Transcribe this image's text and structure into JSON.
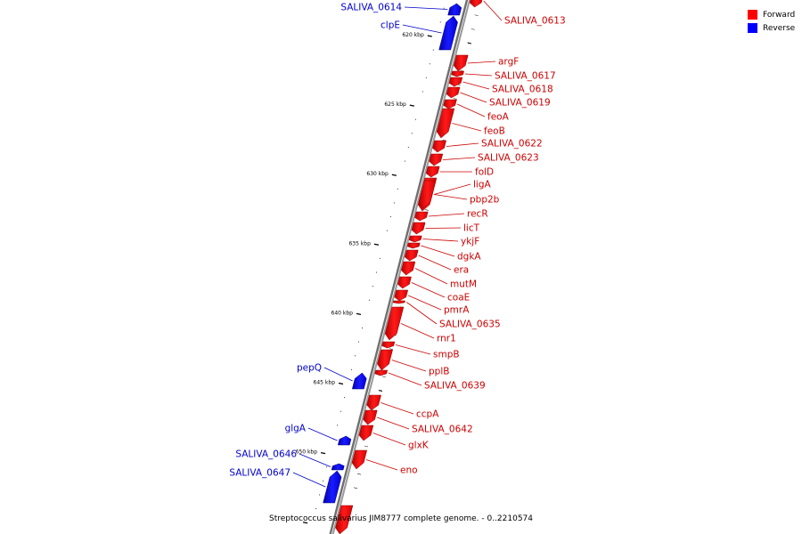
{
  "legend": [
    {
      "label": "Forward",
      "color": "#ff0000"
    },
    {
      "label": "Reverse",
      "color": "#0000ff"
    }
  ],
  "footer": "Streptococcus salivarius JIM8777 complete genome. - 0..2210574",
  "axis": {
    "unit": "kbp",
    "ticks": [
      620,
      625,
      630,
      635,
      640,
      645,
      650
    ]
  },
  "genes": [
    {
      "name": "SALIVA_0613",
      "strand": "forward"
    },
    {
      "name": "SALIVA_0614",
      "strand": "reverse"
    },
    {
      "name": "clpE",
      "strand": "reverse"
    },
    {
      "name": "argF",
      "strand": "forward"
    },
    {
      "name": "SALIVA_0617",
      "strand": "forward"
    },
    {
      "name": "SALIVA_0618",
      "strand": "forward"
    },
    {
      "name": "SALIVA_0619",
      "strand": "forward"
    },
    {
      "name": "feoA",
      "strand": "forward"
    },
    {
      "name": "feoB",
      "strand": "forward"
    },
    {
      "name": "SALIVA_0622",
      "strand": "forward"
    },
    {
      "name": "SALIVA_0623",
      "strand": "forward"
    },
    {
      "name": "folD",
      "strand": "forward"
    },
    {
      "name": "ligA",
      "strand": "forward"
    },
    {
      "name": "pbp2b",
      "strand": "forward"
    },
    {
      "name": "recR",
      "strand": "forward"
    },
    {
      "name": "licT",
      "strand": "forward"
    },
    {
      "name": "ykjF",
      "strand": "forward"
    },
    {
      "name": "dgkA",
      "strand": "forward"
    },
    {
      "name": "era",
      "strand": "forward"
    },
    {
      "name": "mutM",
      "strand": "forward"
    },
    {
      "name": "coaE",
      "strand": "forward"
    },
    {
      "name": "pmrA",
      "strand": "forward"
    },
    {
      "name": "SALIVA_0635",
      "strand": "forward"
    },
    {
      "name": "rnr1",
      "strand": "forward"
    },
    {
      "name": "smpB",
      "strand": "forward"
    },
    {
      "name": "pepQ",
      "strand": "reverse"
    },
    {
      "name": "pplB",
      "strand": "forward"
    },
    {
      "name": "SALIVA_0639",
      "strand": "forward"
    },
    {
      "name": "ccpA",
      "strand": "forward"
    },
    {
      "name": "SALIVA_0642",
      "strand": "forward"
    },
    {
      "name": "glgA",
      "strand": "reverse"
    },
    {
      "name": "glxK",
      "strand": "forward"
    },
    {
      "name": "SALIVA_0646",
      "strand": "reverse"
    },
    {
      "name": "eno",
      "strand": "forward"
    },
    {
      "name": "SALIVA_0647",
      "strand": "reverse"
    }
  ]
}
